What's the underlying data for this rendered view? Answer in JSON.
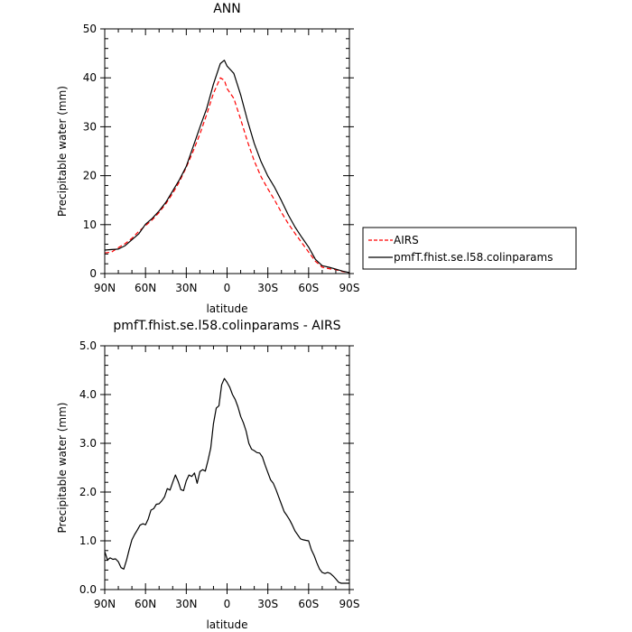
{
  "chart_data": [
    {
      "type": "line",
      "title": "ANN",
      "xlabel": "latitude",
      "ylabel": "Precipitable water (mm)",
      "xlim": [
        90,
        -90
      ],
      "ylim": [
        0,
        50
      ],
      "x_ticks": [
        90,
        60,
        30,
        0,
        -30,
        -60,
        -90
      ],
      "x_tick_labels": [
        "90N",
        "60N",
        "30N",
        "0",
        "30S",
        "60S",
        "90S"
      ],
      "y_ticks": [
        0,
        10,
        20,
        30,
        40,
        50
      ],
      "y_tick_labels": [
        "0",
        "10",
        "20",
        "30",
        "40",
        "50"
      ],
      "legend_position": "right",
      "grid": false,
      "series": [
        {
          "name": "AIRS",
          "color": "#ff0000",
          "dash": "dashed",
          "x": [
            90,
            85,
            80,
            75,
            70,
            65,
            60,
            55,
            50,
            45,
            40,
            35,
            30,
            25,
            20,
            15,
            10,
            5,
            2,
            0,
            -5,
            -10,
            -15,
            -20,
            -25,
            -30,
            -35,
            -40,
            -45,
            -50,
            -55,
            -60,
            -65,
            -70,
            -75,
            -80,
            -85,
            -90
          ],
          "y": [
            4.2,
            4.4,
            5.3,
            6.1,
            7.2,
            8.6,
            9.8,
            11,
            12.5,
            14.3,
            16.4,
            18.8,
            21.7,
            25,
            28.5,
            32.5,
            36.8,
            40,
            39.5,
            37.8,
            35.8,
            31.5,
            27,
            23,
            19.8,
            17.3,
            15,
            12.5,
            10.2,
            8.2,
            6.3,
            4.4,
            2.5,
            1.3,
            1.0,
            0.8,
            0.4,
            0.2
          ]
        },
        {
          "name": "pmfT.fhist.se.l58.colinparams",
          "color": "#000000",
          "dash": "solid",
          "x": [
            90,
            85,
            80,
            75,
            70,
            65,
            60,
            55,
            50,
            45,
            40,
            35,
            30,
            25,
            20,
            15,
            10,
            5,
            2,
            0,
            -5,
            -10,
            -15,
            -20,
            -25,
            -30,
            -35,
            -40,
            -45,
            -50,
            -55,
            -60,
            -65,
            -70,
            -75,
            -80,
            -85,
            -90
          ],
          "y": [
            4.8,
            4.9,
            5.0,
            5.7,
            6.9,
            8.1,
            10.1,
            11.3,
            12.8,
            14.6,
            16.9,
            19.2,
            21.9,
            25.9,
            29.9,
            33.7,
            38.7,
            42.9,
            43.6,
            42.4,
            40.9,
            36.5,
            31.3,
            26.6,
            22.9,
            19.9,
            17.6,
            14.9,
            12.0,
            9.5,
            7.4,
            5.4,
            2.9,
            1.6,
            1.3,
            0.9,
            0.5,
            0.2
          ]
        }
      ]
    },
    {
      "type": "line",
      "title": "pmfT.fhist.se.l58.colinparams - AIRS",
      "xlabel": "latitude",
      "ylabel": "Precipitable water (mm)",
      "xlim": [
        90,
        -90
      ],
      "ylim": [
        0,
        5
      ],
      "x_ticks": [
        90,
        60,
        30,
        0,
        -30,
        -60,
        -90
      ],
      "x_tick_labels": [
        "90N",
        "60N",
        "30N",
        "0",
        "30S",
        "60S",
        "90S"
      ],
      "y_ticks": [
        0,
        1,
        2,
        3,
        4,
        5
      ],
      "y_tick_labels": [
        "0.0",
        "1.0",
        "2.0",
        "3.0",
        "4.0",
        "5.0"
      ],
      "grid": false,
      "series": [
        {
          "color": "#000000",
          "x": [
            90,
            88,
            86,
            84,
            82,
            80,
            78,
            76,
            74,
            72,
            70,
            68,
            66,
            64,
            62,
            60,
            58,
            56,
            54,
            52,
            50,
            48,
            46,
            44,
            42,
            40,
            38,
            36,
            34,
            32,
            30,
            28,
            26,
            24,
            22,
            20,
            18,
            16,
            14,
            12,
            10,
            8,
            6,
            4,
            2,
            0,
            -2,
            -4,
            -6,
            -8,
            -10,
            -12,
            -14,
            -16,
            -18,
            -20,
            -22,
            -24,
            -26,
            -28,
            -30,
            -32,
            -34,
            -36,
            -38,
            -40,
            -42,
            -44,
            -46,
            -48,
            -50,
            -52,
            -54,
            -56,
            -58,
            -60,
            -62,
            -64,
            -66,
            -68,
            -70,
            -72,
            -74,
            -76,
            -78,
            -80,
            -82,
            -84,
            -86,
            -88,
            -90
          ],
          "y": [
            0.78,
            0.61,
            0.65,
            0.62,
            0.63,
            0.57,
            0.45,
            0.42,
            0.6,
            0.82,
            1.02,
            1.13,
            1.22,
            1.32,
            1.35,
            1.33,
            1.45,
            1.63,
            1.66,
            1.75,
            1.76,
            1.82,
            1.9,
            2.07,
            2.04,
            2.2,
            2.35,
            2.22,
            2.05,
            2.03,
            2.23,
            2.35,
            2.32,
            2.39,
            2.18,
            2.42,
            2.46,
            2.43,
            2.65,
            2.9,
            3.4,
            3.72,
            3.77,
            4.2,
            4.33,
            4.25,
            4.15,
            4.0,
            3.9,
            3.75,
            3.55,
            3.42,
            3.25,
            3.0,
            2.88,
            2.85,
            2.81,
            2.8,
            2.72,
            2.55,
            2.4,
            2.25,
            2.18,
            2.05,
            1.9,
            1.75,
            1.6,
            1.52,
            1.43,
            1.32,
            1.2,
            1.12,
            1.04,
            1.02,
            1.01,
            1.0,
            0.82,
            0.7,
            0.55,
            0.42,
            0.35,
            0.33,
            0.35,
            0.33,
            0.28,
            0.22,
            0.15,
            0.13,
            0.13,
            0.13,
            0.13
          ]
        }
      ]
    }
  ]
}
